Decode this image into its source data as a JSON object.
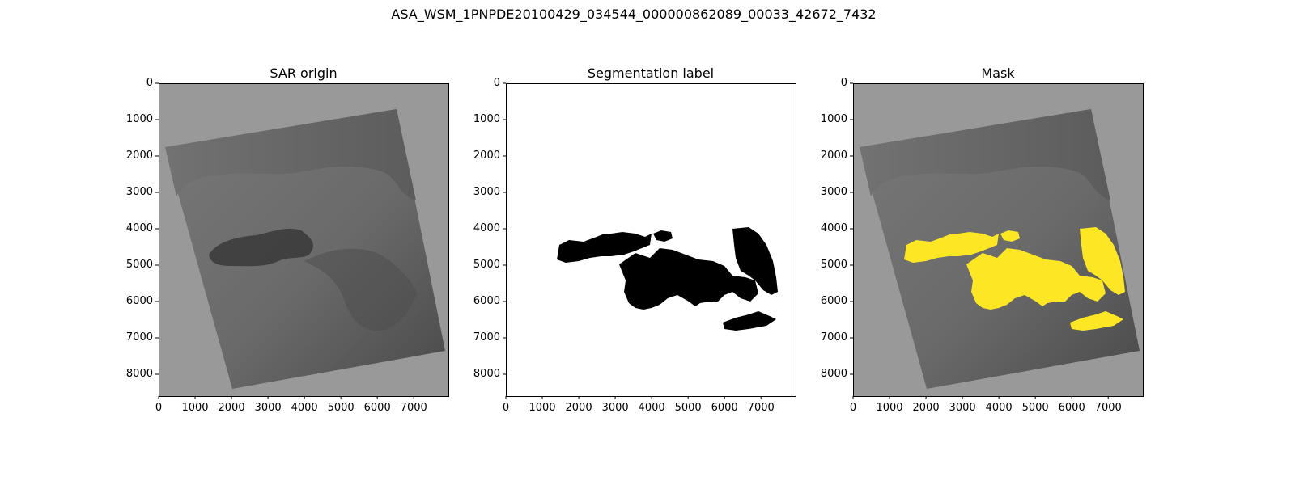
{
  "figure": {
    "title": "ASA_WSM_1PNPDE20100429_034544_000000862089_00033_42672_7432"
  },
  "panels": [
    {
      "title": "SAR origin"
    },
    {
      "title": "Segmentation label"
    },
    {
      "title": "Mask"
    }
  ],
  "axes": {
    "x_ticks": [
      "0",
      "1000",
      "2000",
      "3000",
      "4000",
      "5000",
      "6000",
      "7000"
    ],
    "y_ticks": [
      "0",
      "1000",
      "2000",
      "3000",
      "4000",
      "5000",
      "6000",
      "7000",
      "8000"
    ],
    "x_range": [
      0,
      7950
    ],
    "y_range": [
      8600,
      0
    ]
  },
  "colors": {
    "background_gray": "#999999",
    "sar_land": "#6e6e6e",
    "sar_sea": "#5a5a5a",
    "sar_slick": "#3c3c3c",
    "label_background": "#ffffff",
    "label_oil": "#000000",
    "mask_oil": "#fde725"
  }
}
